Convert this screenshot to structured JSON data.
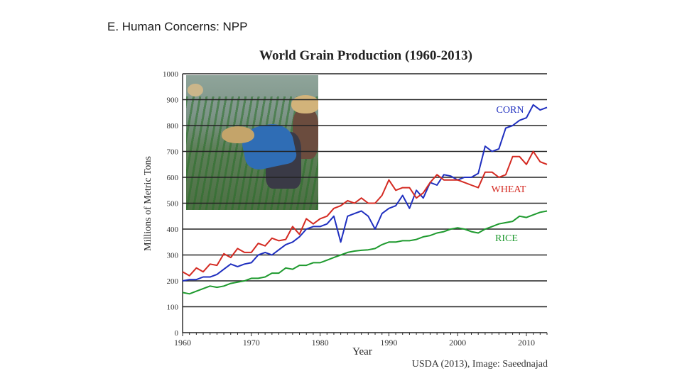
{
  "slide_title": "E. Human Concerns: NPP",
  "chart_data": {
    "type": "line",
    "title": "World Grain Production (1960-2013)",
    "xlabel": "Year",
    "ylabel": "Millions of Metric Tons",
    "source": "USDA (2013), Image: Saeednajad",
    "xlim": [
      1960,
      2013
    ],
    "ylim": [
      0,
      1000
    ],
    "x_ticks": [
      1960,
      1970,
      1980,
      1990,
      2000,
      2010
    ],
    "y_ticks": [
      0,
      100,
      200,
      300,
      400,
      500,
      600,
      700,
      800,
      900,
      1000
    ],
    "grid": "horizontal",
    "legend": "inline labels",
    "x": [
      1960,
      1961,
      1962,
      1963,
      1964,
      1965,
      1966,
      1967,
      1968,
      1969,
      1970,
      1971,
      1972,
      1973,
      1974,
      1975,
      1976,
      1977,
      1978,
      1979,
      1980,
      1981,
      1982,
      1983,
      1984,
      1985,
      1986,
      1987,
      1988,
      1989,
      1990,
      1991,
      1992,
      1993,
      1994,
      1995,
      1996,
      1997,
      1998,
      1999,
      2000,
      2001,
      2002,
      2003,
      2004,
      2005,
      2006,
      2007,
      2008,
      2009,
      2010,
      2011,
      2012,
      2013
    ],
    "series": [
      {
        "name": "CORN",
        "color": "#1f2fbf",
        "values": [
          200,
          205,
          205,
          215,
          215,
          225,
          245,
          265,
          255,
          265,
          270,
          300,
          310,
          300,
          320,
          340,
          350,
          370,
          400,
          410,
          410,
          420,
          450,
          350,
          450,
          460,
          470,
          450,
          400,
          460,
          480,
          490,
          530,
          480,
          550,
          520,
          580,
          570,
          610,
          605,
          590,
          600,
          600,
          615,
          720,
          700,
          710,
          790,
          800,
          820,
          830,
          880,
          860,
          870
        ]
      },
      {
        "name": "WHEAT",
        "color": "#d42a22",
        "values": [
          235,
          220,
          250,
          235,
          265,
          260,
          305,
          290,
          325,
          310,
          310,
          345,
          335,
          365,
          355,
          360,
          410,
          380,
          440,
          420,
          440,
          450,
          480,
          490,
          510,
          500,
          520,
          500,
          500,
          530,
          590,
          550,
          560,
          560,
          520,
          540,
          580,
          610,
          590,
          590,
          590,
          580,
          570,
          560,
          620,
          620,
          600,
          610,
          680,
          680,
          650,
          700,
          660,
          650
        ]
      },
      {
        "name": "RICE",
        "color": "#1e9a2e",
        "values": [
          155,
          150,
          160,
          170,
          180,
          175,
          180,
          190,
          195,
          200,
          210,
          210,
          215,
          230,
          230,
          250,
          245,
          260,
          260,
          270,
          270,
          280,
          290,
          300,
          310,
          315,
          318,
          320,
          325,
          340,
          350,
          350,
          355,
          355,
          360,
          370,
          375,
          385,
          390,
          400,
          405,
          400,
          390,
          385,
          400,
          410,
          420,
          425,
          430,
          450,
          445,
          455,
          465,
          470
        ]
      }
    ]
  },
  "photo_alt": "rice-paddy-workers-photo"
}
